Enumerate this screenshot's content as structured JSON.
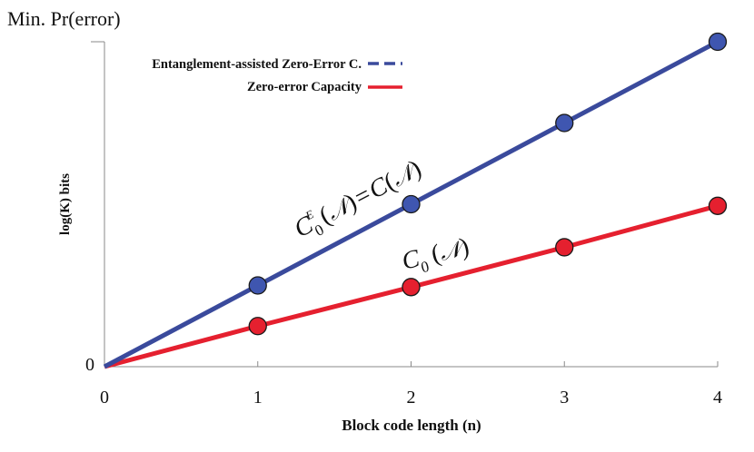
{
  "chart_data": {
    "type": "line",
    "title": "",
    "top_left_label": "Min. Pr(error)",
    "xlabel": "Block code length (n)",
    "ylabel": "log(K) bits",
    "x": [
      0,
      1,
      2,
      3,
      4
    ],
    "x_tick_labels": [
      "0",
      "1",
      "2",
      "3",
      "4"
    ],
    "y_tick_labels": [
      "0"
    ],
    "xlim": [
      0,
      4
    ],
    "ylim": [
      0,
      4
    ],
    "grid": false,
    "legend_position": "top-left",
    "series": [
      {
        "name": "Entanglement-assisted Zero-Error C.",
        "annotation_base": "C",
        "annotation_sub": "0",
        "annotation_sup": "E",
        "annotation_rhs": "C",
        "values": [
          0,
          1,
          2,
          3,
          4
        ],
        "color": "#3a4a9c",
        "marker_color": "#3f56b0",
        "legend_style": "dashed"
      },
      {
        "name": "Zero-error Capacity",
        "annotation_base": "C",
        "annotation_sub": "0",
        "values": [
          0,
          0.5,
          0.98,
          1.47,
          1.98
        ],
        "color": "#e5202f",
        "marker_color": "#e5202f",
        "legend_style": "solid"
      }
    ]
  }
}
